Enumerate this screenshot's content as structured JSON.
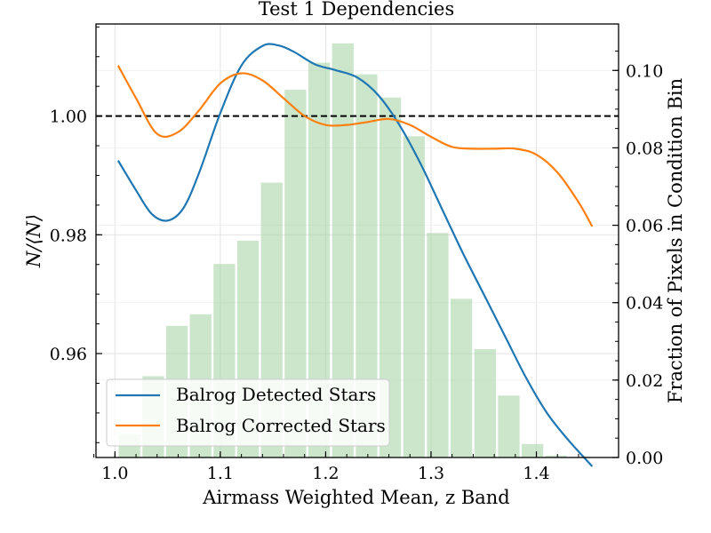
{
  "chart_data": {
    "type": "line+bar",
    "title": "Test 1 Dependencies",
    "xlabel": "Airmass Weighted Mean, z Band",
    "ylabel": "N/⟨N⟩",
    "y2label": "Fraction of Pixels in Condition Bin",
    "xlim": [
      0.982,
      1.478
    ],
    "ylim": [
      0.9425,
      1.0155
    ],
    "y2lim": [
      0.0,
      0.112
    ],
    "x_ticks": [
      1.0,
      1.1,
      1.2,
      1.3,
      1.4
    ],
    "x_tick_labels": [
      "1.0",
      "1.1",
      "1.2",
      "1.3",
      "1.4"
    ],
    "y_ticks": [
      0.96,
      0.98,
      1.0
    ],
    "y_tick_labels": [
      "0.96",
      "0.98",
      "1.00"
    ],
    "y2_ticks": [
      0.0,
      0.02,
      0.04,
      0.06,
      0.08,
      0.1
    ],
    "y2_tick_labels": [
      "0.00",
      "0.02",
      "0.04",
      "0.06",
      "0.08",
      "0.10"
    ],
    "reference_line": 1.0,
    "grid": true,
    "legend_position": "lower-left",
    "colors": {
      "detected": "#1f77b4",
      "corrected": "#ff7f0e",
      "histogram": "#a9d6a9",
      "reference": "#000000"
    },
    "histogram": {
      "name": "",
      "bin_width": 0.0225,
      "bin_centers": [
        1.0138,
        1.0363,
        1.0588,
        1.0813,
        1.1038,
        1.1263,
        1.1488,
        1.1713,
        1.1938,
        1.2163,
        1.2388,
        1.2613,
        1.2838,
        1.3063,
        1.3288,
        1.3513,
        1.3738,
        1.3963,
        1.4188,
        1.4413
      ],
      "values": [
        0.006,
        0.021,
        0.034,
        0.037,
        0.05,
        0.056,
        0.071,
        0.095,
        0.102,
        0.107,
        0.099,
        0.093,
        0.083,
        0.058,
        0.041,
        0.028,
        0.016,
        0.0035,
        0.0005,
        0.0002
      ]
    },
    "series": [
      {
        "name": "Balrog Detected Stars",
        "x": [
          1.003,
          1.02,
          1.035,
          1.05,
          1.065,
          1.08,
          1.1,
          1.12,
          1.14,
          1.155,
          1.17,
          1.19,
          1.21,
          1.23,
          1.25,
          1.27,
          1.29,
          1.31,
          1.33,
          1.35,
          1.37,
          1.39,
          1.41,
          1.43,
          1.453
        ],
        "y": [
          0.9925,
          0.9875,
          0.9835,
          0.9824,
          0.9845,
          0.9905,
          1.0005,
          1.0085,
          1.0118,
          1.0119,
          1.0108,
          1.0087,
          1.0077,
          1.0065,
          1.0035,
          0.9985,
          0.992,
          0.9845,
          0.977,
          0.97,
          0.963,
          0.956,
          0.95,
          0.9455,
          0.941
        ]
      },
      {
        "name": "Balrog Corrected Stars",
        "x": [
          1.003,
          1.02,
          1.04,
          1.06,
          1.08,
          1.1,
          1.12,
          1.14,
          1.16,
          1.18,
          1.2,
          1.22,
          1.24,
          1.26,
          1.28,
          1.3,
          1.32,
          1.34,
          1.36,
          1.38,
          1.4,
          1.42,
          1.44,
          1.453
        ],
        "y": [
          1.0085,
          1.003,
          0.997,
          0.9973,
          1.001,
          1.0055,
          1.0072,
          1.006,
          1.003,
          1.0,
          0.9985,
          0.9985,
          0.999,
          0.9995,
          0.9985,
          0.9965,
          0.9948,
          0.9945,
          0.9945,
          0.9945,
          0.9935,
          0.9905,
          0.9855,
          0.9814
        ]
      }
    ]
  }
}
